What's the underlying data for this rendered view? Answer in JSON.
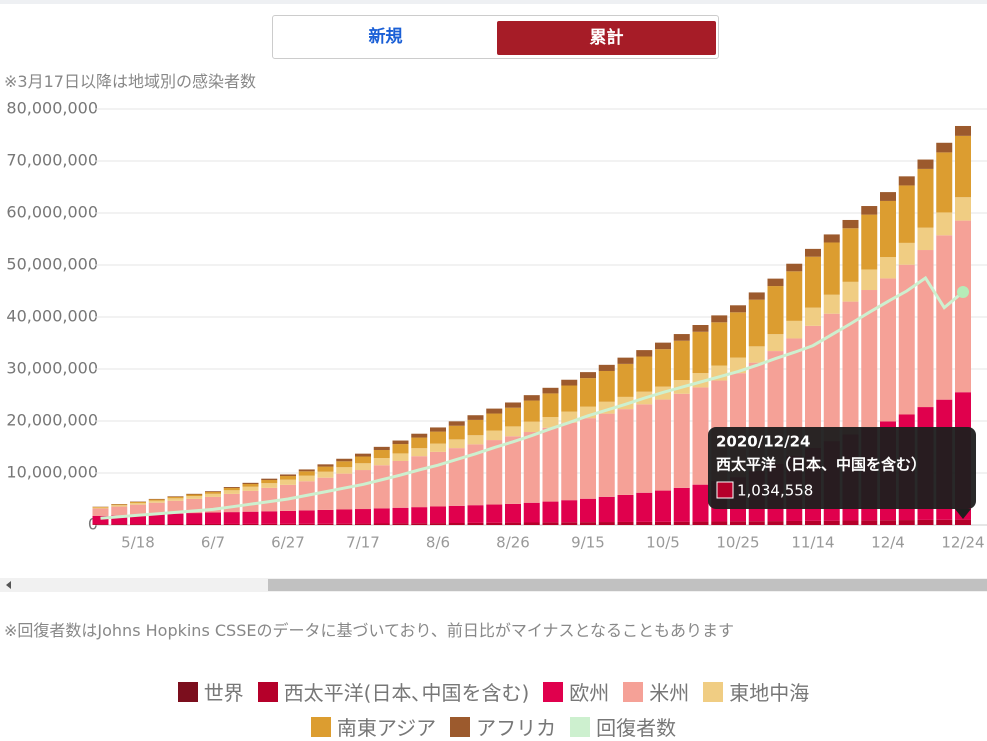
{
  "buttons": {
    "new": "新規",
    "cumulative": "累計"
  },
  "notes": {
    "top": "※3月17日以降は地域別の感染者数",
    "bottom": "※回復者数はJohns Hopkins CSSEのデータに基づいており、前日比がマイナスとなることもあります"
  },
  "chart_data": {
    "type": "bar",
    "stacked": true,
    "categories": [
      null,
      null,
      "5/18",
      null,
      null,
      null,
      "6/7",
      null,
      null,
      null,
      "6/27",
      null,
      null,
      null,
      "7/17",
      null,
      null,
      null,
      "8/6",
      null,
      null,
      null,
      "8/26",
      null,
      null,
      null,
      "9/15",
      null,
      null,
      null,
      "10/5",
      null,
      null,
      null,
      "10/25",
      null,
      null,
      null,
      "11/14",
      null,
      null,
      null,
      "12/4",
      null,
      null,
      null,
      "12/24"
    ],
    "ylim": [
      0,
      80000000
    ],
    "yticks": [
      {
        "value": 0,
        "label": "0"
      },
      {
        "value": 10000000,
        "label": "10,000,000"
      },
      {
        "value": 20000000,
        "label": "20,000,000"
      },
      {
        "value": 30000000,
        "label": "30,000,000"
      },
      {
        "value": 40000000,
        "label": "40,000,000"
      },
      {
        "value": 50000000,
        "label": "50,000,000"
      },
      {
        "value": 60000000,
        "label": "60,000,000"
      },
      {
        "value": 70000000,
        "label": "70,000,000"
      },
      {
        "value": 80000000,
        "label": "80,000,000"
      }
    ],
    "grid": true,
    "series": [
      {
        "name": "世界",
        "color": "#7b0e1d"
      },
      {
        "name": "西太平洋(日本､中国を含む)",
        "color": "#b5002a",
        "type": "bar",
        "values": [
          170000,
          175000,
          180000,
          185000,
          190000,
          195000,
          200000,
          205000,
          210000,
          215000,
          220000,
          230000,
          245000,
          255000,
          270000,
          290000,
          315000,
          335000,
          360000,
          385000,
          410000,
          435000,
          460000,
          480000,
          505000,
          525000,
          550000,
          570000,
          585000,
          605000,
          620000,
          640000,
          660000,
          680000,
          700000,
          725000,
          750000,
          775000,
          800000,
          830000,
          860000,
          890000,
          920000,
          950000,
          980000,
          1005000,
          1034558
        ]
      },
      {
        "name": "欧州",
        "color": "#e0004d",
        "type": "bar",
        "values": [
          1600000,
          1700000,
          1800000,
          1900000,
          2000000,
          2100000,
          2200000,
          2275000,
          2350000,
          2425000,
          2500000,
          2575000,
          2650000,
          2725000,
          2800000,
          2900000,
          3000000,
          3100000,
          3200000,
          3300000,
          3400000,
          3500000,
          3600000,
          3800000,
          4000000,
          4250000,
          4500000,
          4850000,
          5200000,
          5600000,
          6000000,
          6500000,
          7100000,
          7800000,
          8500000,
          9700000,
          11000000,
          12500000,
          14000000,
          15300000,
          16600000,
          17800000,
          19000000,
          20300000,
          21700000,
          23100000,
          24500000
        ]
      },
      {
        "name": "米州",
        "color": "#f5a197",
        "type": "bar",
        "values": [
          1400000,
          1670000,
          1930000,
          2200000,
          2470000,
          2730000,
          3000000,
          3500000,
          4000000,
          4500000,
          5000000,
          5600000,
          6200000,
          6900000,
          7500000,
          8300000,
          9000000,
          9800000,
          10500000,
          11100000,
          11700000,
          12400000,
          13000000,
          13600000,
          14200000,
          14900000,
          15500000,
          16000000,
          16500000,
          17000000,
          17500000,
          18100000,
          18700000,
          19300000,
          20000000,
          20800000,
          21700000,
          22600000,
          23500000,
          24500000,
          25500000,
          26500000,
          27500000,
          28800000,
          30200000,
          31600000,
          33000000
        ]
      },
      {
        "name": "東地中海",
        "color": "#f0cd83",
        "type": "bar",
        "values": [
          200000,
          270000,
          330000,
          400000,
          470000,
          530000,
          600000,
          700000,
          800000,
          900000,
          1000000,
          1080000,
          1150000,
          1230000,
          1300000,
          1380000,
          1450000,
          1530000,
          1600000,
          1680000,
          1750000,
          1830000,
          1900000,
          1980000,
          2050000,
          2130000,
          2200000,
          2280000,
          2350000,
          2430000,
          2500000,
          2630000,
          2750000,
          2880000,
          3000000,
          3130000,
          3250000,
          3380000,
          3500000,
          3650000,
          3800000,
          3950000,
          4100000,
          4200000,
          4300000,
          4400000,
          4500000
        ]
      },
      {
        "name": "南東アジア",
        "color": "#dc9d30",
        "type": "bar",
        "values": [
          100000,
          140000,
          180000,
          230000,
          270000,
          310000,
          350000,
          430000,
          520000,
          610000,
          700000,
          840000,
          990000,
          1140000,
          1300000,
          1550000,
          1800000,
          2050000,
          2300000,
          2620000,
          2950000,
          3270000,
          3600000,
          4070000,
          4550000,
          5020000,
          5500000,
          5920000,
          6350000,
          6770000,
          7200000,
          7570000,
          7950000,
          8320000,
          8700000,
          8980000,
          9250000,
          9530000,
          9800000,
          10050000,
          10300000,
          10550000,
          10800000,
          11050000,
          11300000,
          11550000,
          11800000
        ]
      },
      {
        "name": "アフリカ",
        "color": "#9c5a2d",
        "type": "bar",
        "values": [
          50000,
          70000,
          80000,
          100000,
          120000,
          130000,
          150000,
          190000,
          230000,
          260000,
          300000,
          360000,
          430000,
          490000,
          550000,
          610000,
          680000,
          740000,
          800000,
          850000,
          900000,
          950000,
          1000000,
          1040000,
          1080000,
          1110000,
          1150000,
          1180000,
          1200000,
          1230000,
          1250000,
          1280000,
          1300000,
          1330000,
          1350000,
          1390000,
          1430000,
          1460000,
          1500000,
          1550000,
          1600000,
          1650000,
          1700000,
          1750000,
          1800000,
          1850000,
          1900000
        ]
      },
      {
        "name": "回復者数",
        "color": "#cdf0cf",
        "type": "line",
        "values": [
          1300000,
          1580000,
          1870000,
          2150000,
          2430000,
          2720000,
          3000000,
          3500000,
          4000000,
          4500000,
          5000000,
          5700000,
          6400000,
          7100000,
          7800000,
          8700000,
          9600000,
          10600000,
          11500000,
          12600000,
          13700000,
          14900000,
          16000000,
          17200000,
          18500000,
          19700000,
          21000000,
          22100000,
          23200000,
          24400000,
          25500000,
          26500000,
          27500000,
          28500000,
          29500000,
          30700000,
          32000000,
          33200000,
          34500000,
          36600000,
          38700000,
          40900000,
          43000000,
          45000000,
          47500000,
          41800000,
          44800000
        ]
      }
    ],
    "tooltip": {
      "date": "2020/12/24",
      "series_name": "西太平洋（日本、中国を含む）",
      "value": 1034558,
      "label": "1,034,558"
    }
  }
}
